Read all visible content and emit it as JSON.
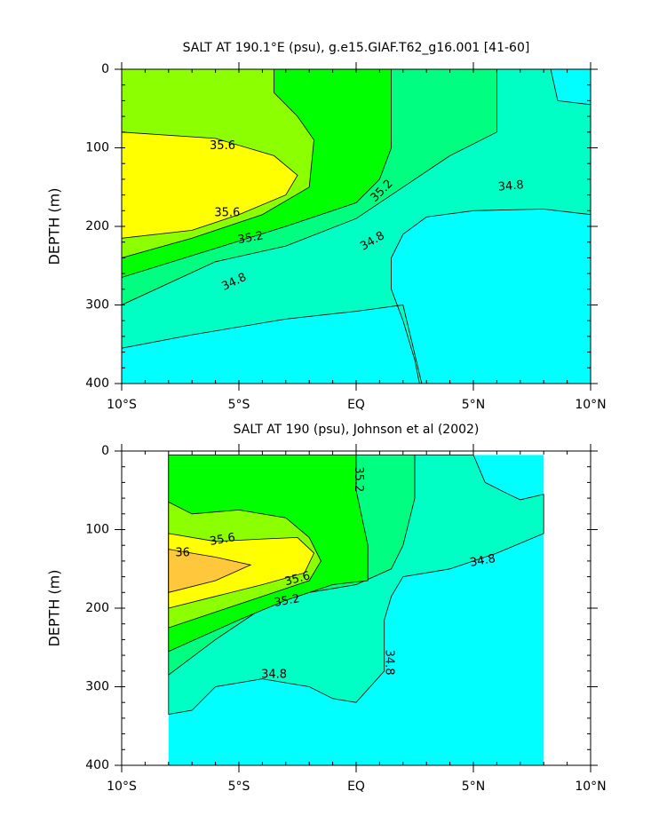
{
  "chart_data": [
    {
      "type": "contour",
      "title": "SALT AT 190.1°E (psu), g.e15.GIAF.T62_g16.001 [41-60]",
      "ylabel": "DEPTH (m)",
      "xlim": [
        -10,
        10
      ],
      "xticks": [
        {
          "value": -10,
          "label": "10°S"
        },
        {
          "value": -5,
          "label": "5°S"
        },
        {
          "value": 0,
          "label": "EQ"
        },
        {
          "value": 5,
          "label": "5°N"
        },
        {
          "value": 10,
          "label": "10°N"
        }
      ],
      "ylim": [
        0,
        400
      ],
      "yticks": [
        0,
        100,
        200,
        300,
        400
      ],
      "y_inverted": true,
      "below_color": "#00ffff",
      "levels": [
        34.8,
        35.0,
        35.2,
        35.4,
        35.6
      ],
      "colors": [
        "#00ffc4",
        "#00ff80",
        "#00ff00",
        "#8cff00",
        "#ffff00"
      ],
      "contour_labels": [
        35.6,
        35.6,
        35.2,
        35.2,
        34.8,
        34.8,
        34.8
      ]
    },
    {
      "type": "contour",
      "title": "SALT AT 190 (psu), Johnson et al (2002)",
      "ylabel": "DEPTH (m)",
      "xlim": [
        -10,
        10
      ],
      "xticks": [
        {
          "value": -10,
          "label": "10°S"
        },
        {
          "value": -5,
          "label": "5°S"
        },
        {
          "value": 0,
          "label": "EQ"
        },
        {
          "value": 5,
          "label": "5°N"
        },
        {
          "value": 10,
          "label": "10°N"
        }
      ],
      "ylim": [
        0,
        400
      ],
      "yticks": [
        0,
        100,
        200,
        300,
        400
      ],
      "y_inverted": true,
      "below_color": "#00ffff",
      "levels": [
        34.8,
        35.0,
        35.2,
        35.4,
        35.6,
        36
      ],
      "colors": [
        "#00ffc4",
        "#00ff80",
        "#00ff00",
        "#8cff00",
        "#ffff00",
        "#ffc83c"
      ],
      "contour_labels": [
        36,
        35.6,
        35.6,
        35.2,
        35.2,
        34.8,
        34.8,
        34.8
      ]
    }
  ]
}
